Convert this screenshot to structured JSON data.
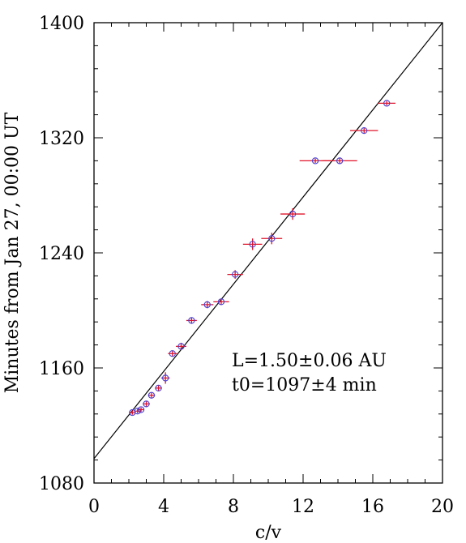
{
  "chart_data": {
    "type": "scatter",
    "title": "",
    "xlabel": "c/v",
    "ylabel": "Minutes from Jan 27, 00:00 UT",
    "xlim": [
      0,
      20
    ],
    "ylim": [
      1080,
      1400
    ],
    "x_ticks": [
      0,
      4,
      8,
      12,
      16,
      20
    ],
    "y_ticks": [
      1080,
      1160,
      1240,
      1320,
      1400
    ],
    "x_minor_step": 1,
    "y_minor_step": 16,
    "grid": false,
    "legend": "none",
    "colors": {
      "marker": "#4a3fd0",
      "errorbar": "#e0142a",
      "fit": "#000000"
    },
    "points": [
      {
        "x": 2.2,
        "y": 1129,
        "xerr": 0.15,
        "yerr": 1.5
      },
      {
        "x": 2.5,
        "y": 1130,
        "xerr": 0.15,
        "yerr": 1.5
      },
      {
        "x": 2.7,
        "y": 1131,
        "xerr": 0.15,
        "yerr": 1.5
      },
      {
        "x": 3.0,
        "y": 1135,
        "xerr": 0.2,
        "yerr": 2
      },
      {
        "x": 3.3,
        "y": 1141,
        "xerr": 0.2,
        "yerr": 2
      },
      {
        "x": 3.7,
        "y": 1146,
        "xerr": 0.2,
        "yerr": 2
      },
      {
        "x": 4.1,
        "y": 1153,
        "xerr": 0.25,
        "yerr": 4
      },
      {
        "x": 4.5,
        "y": 1170,
        "xerr": 0.25,
        "yerr": 2
      },
      {
        "x": 5.0,
        "y": 1175,
        "xerr": 0.3,
        "yerr": 2.5
      },
      {
        "x": 5.6,
        "y": 1193,
        "xerr": 0.3,
        "yerr": 2
      },
      {
        "x": 6.5,
        "y": 1204,
        "xerr": 0.35,
        "yerr": 2.5
      },
      {
        "x": 7.3,
        "y": 1206,
        "xerr": 0.45,
        "yerr": 2
      },
      {
        "x": 8.1,
        "y": 1225,
        "xerr": 0.45,
        "yerr": 3
      },
      {
        "x": 9.1,
        "y": 1246,
        "xerr": 0.55,
        "yerr": 4
      },
      {
        "x": 10.2,
        "y": 1250,
        "xerr": 0.6,
        "yerr": 4
      },
      {
        "x": 11.4,
        "y": 1267,
        "xerr": 0.7,
        "yerr": 4
      },
      {
        "x": 12.7,
        "y": 1304,
        "xerr": 0.9,
        "yerr": 1.5
      },
      {
        "x": 14.1,
        "y": 1304,
        "xerr": 1.0,
        "yerr": 2
      },
      {
        "x": 15.5,
        "y": 1325,
        "xerr": 0.8,
        "yerr": 2
      },
      {
        "x": 16.8,
        "y": 1344,
        "xerr": 0.5,
        "yerr": 1.5
      }
    ],
    "fit_line": {
      "x": [
        0,
        20
      ],
      "y": [
        1097,
        1400
      ]
    },
    "annotations": [
      "L=1.50±0.06 AU",
      "t0=1097±4 min"
    ]
  }
}
